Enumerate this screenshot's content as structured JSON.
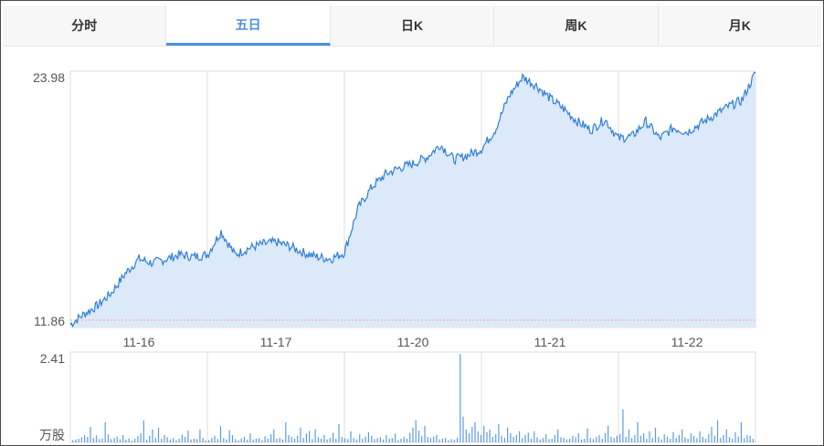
{
  "tabs": [
    {
      "label": "分时",
      "active": false
    },
    {
      "label": "五日",
      "active": true
    },
    {
      "label": "日K",
      "active": false
    },
    {
      "label": "周K",
      "active": false
    },
    {
      "label": "月K",
      "active": false
    }
  ],
  "colors": {
    "line": "#2f7fd8",
    "fill": "#dce9f9",
    "grid": "#dcdcdc",
    "baseline": "#f0a0a0",
    "volume": "#5b9be6",
    "label": "#555555"
  },
  "chart_data": [
    {
      "type": "area",
      "name": "price",
      "y_max_label": "23.98",
      "y_min_label": "11.86",
      "ylim": [
        11.86,
        23.98
      ],
      "days": [
        "11-16",
        "11-17",
        "11-20",
        "11-21",
        "11-22"
      ],
      "x": [
        0,
        2,
        4,
        6,
        8,
        10,
        12,
        14,
        16,
        18,
        20,
        22,
        24,
        26,
        28,
        30,
        32,
        34,
        36,
        38,
        40,
        42,
        44,
        46,
        48,
        50,
        52,
        54,
        56,
        58,
        60,
        62,
        64,
        66,
        68,
        70,
        72,
        74,
        76,
        78,
        80,
        82,
        84,
        86,
        88,
        90,
        92,
        94,
        96,
        98,
        100
      ],
      "y": [
        12.0,
        12.5,
        12.9,
        13.5,
        14.4,
        15.1,
        14.9,
        15.1,
        15.3,
        15.2,
        15.3,
        16.4,
        15.3,
        15.6,
        15.8,
        15.9,
        15.7,
        15.4,
        15.2,
        15.1,
        15.4,
        17.5,
        18.5,
        19.1,
        19.4,
        19.6,
        19.9,
        20.5,
        19.8,
        20.0,
        20.3,
        21.2,
        22.8,
        23.7,
        23.3,
        22.7,
        22.2,
        21.6,
        21.2,
        21.7,
        20.8,
        20.9,
        21.6,
        20.8,
        21.3,
        21.1,
        21.5,
        21.9,
        22.3,
        22.6,
        23.9
      ]
    },
    {
      "type": "bar",
      "name": "volume",
      "y_max_label": "2.41",
      "unit_label": "万股",
      "ylim": [
        0,
        2.41
      ],
      "values": [
        0.06,
        0.08,
        0.1,
        0.14,
        0.2,
        0.15,
        0.42,
        0.12,
        0.19,
        0.09,
        0.11,
        0.55,
        0.22,
        0.09,
        0.12,
        0.16,
        0.08,
        0.2,
        0.07,
        0.11,
        0.04,
        0.1,
        0.18,
        0.25,
        0.6,
        0.07,
        0.18,
        0.35,
        0.12,
        0.4,
        0.1,
        0.2,
        0.14,
        0.08,
        0.12,
        0.06,
        0.1,
        0.21,
        0.15,
        0.32,
        0.08,
        0.1,
        0.09,
        0.35,
        0.12,
        0.05,
        0.06,
        0.12,
        0.18,
        0.09,
        0.44,
        0.12,
        0.08,
        0.33,
        0.2,
        0.09,
        0.06,
        0.11,
        0.15,
        0.07,
        0.24,
        0.08,
        0.1,
        0.12,
        0.06,
        0.17,
        0.1,
        0.22,
        0.35,
        0.1,
        0.12,
        0.08,
        0.55,
        0.2,
        0.15,
        0.1,
        0.18,
        0.4,
        0.12,
        0.24,
        0.31,
        0.09,
        0.36,
        0.14,
        0.1,
        0.2,
        0.08,
        0.12,
        0.26,
        0.1,
        0.5,
        0.15,
        0.11,
        0.09,
        0.3,
        0.12,
        0.08,
        0.22,
        0.1,
        0.16,
        0.28,
        0.18,
        0.09,
        0.12,
        0.14,
        0.08,
        0.2,
        0.1,
        0.12,
        0.24,
        0.06,
        0.1,
        0.15,
        0.1,
        0.26,
        0.4,
        0.6,
        0.32,
        0.18,
        0.45,
        0.15,
        0.12,
        0.16,
        0.2,
        0.08,
        0.1,
        0.12,
        0.06,
        0.09,
        0.07,
        0.13,
        2.41,
        0.7,
        0.35,
        0.25,
        0.42,
        0.55,
        0.3,
        0.2,
        0.45,
        0.28,
        0.35,
        0.15,
        0.22,
        0.5,
        0.18,
        0.12,
        0.4,
        0.25,
        0.15,
        0.2,
        0.3,
        0.12,
        0.2,
        0.26,
        0.1,
        0.3,
        0.14,
        0.08,
        0.12,
        0.22,
        0.09,
        0.1,
        0.2,
        0.35,
        0.14,
        0.12,
        0.08,
        0.1,
        0.18,
        0.14,
        0.25,
        0.08,
        0.1,
        0.38,
        0.12,
        0.09,
        0.15,
        0.2,
        0.1,
        0.25,
        0.45,
        0.16,
        0.12,
        0.18,
        0.22,
        0.9,
        0.15,
        0.35,
        0.12,
        0.2,
        0.55,
        0.18,
        0.24,
        0.1,
        0.3,
        0.12,
        0.4,
        0.15,
        0.08,
        0.22,
        0.16,
        0.1,
        0.28,
        0.12,
        0.2,
        0.35,
        0.14,
        0.1,
        0.24,
        0.18,
        0.12,
        0.3,
        0.15,
        0.1,
        0.22,
        0.42,
        0.18,
        0.6,
        0.12,
        0.2,
        0.35,
        0.14,
        0.1,
        0.28,
        0.16,
        0.55,
        0.12,
        0.2,
        0.18,
        0.1
      ]
    }
  ]
}
